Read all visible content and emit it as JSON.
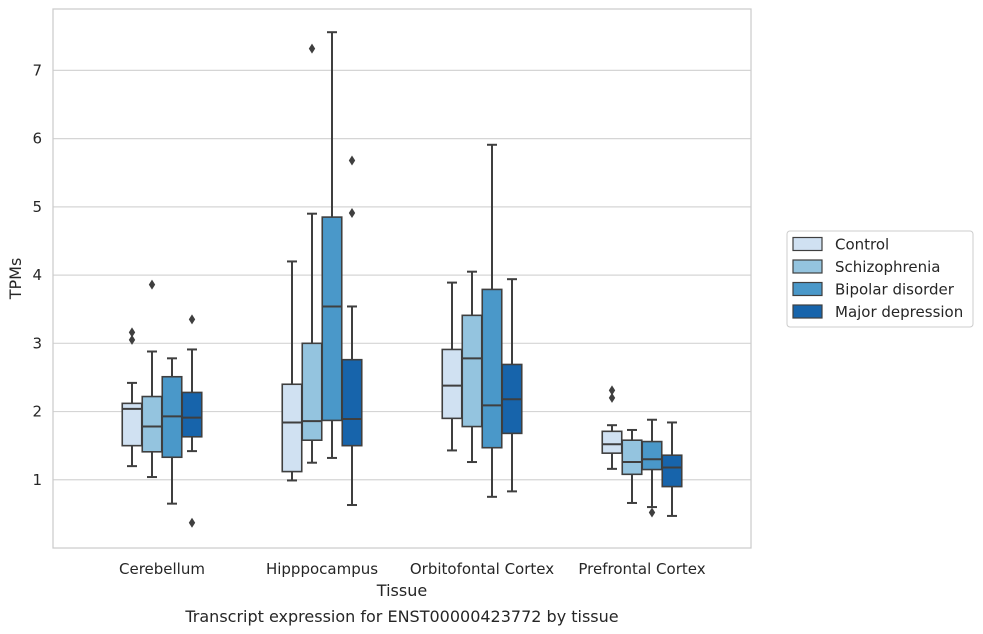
{
  "chart_data": {
    "type": "box",
    "xlabel": "Tissue",
    "ylabel": "TPMs",
    "caption": "Transcript expression for ENST00000423772 by tissue",
    "ylim": [
      0,
      7.9
    ],
    "yticks": [
      1,
      2,
      3,
      4,
      5,
      6,
      7
    ],
    "grid": "horizontal",
    "legend_position": "right",
    "categories": [
      "Cerebellum",
      "Hipppocampus",
      "Orbitofontal Cortex",
      "Prefrontal Cortex"
    ],
    "series": [
      {
        "name": "Control",
        "color": "#d0e1f2",
        "boxes": [
          {
            "whislo": 1.2,
            "q1": 1.5,
            "med": 2.04,
            "q3": 2.12,
            "whishi": 2.42,
            "fliers": [
              3.05,
              3.16
            ]
          },
          {
            "whislo": 0.99,
            "q1": 1.12,
            "med": 1.84,
            "q3": 2.4,
            "whishi": 4.2,
            "fliers": []
          },
          {
            "whislo": 1.43,
            "q1": 1.9,
            "med": 2.38,
            "q3": 2.91,
            "whishi": 3.89,
            "fliers": []
          },
          {
            "whislo": 1.16,
            "q1": 1.39,
            "med": 1.52,
            "q3": 1.71,
            "whishi": 1.8,
            "fliers": [
              2.2,
              2.31
            ]
          }
        ]
      },
      {
        "name": "Schizophrenia",
        "color": "#94c4df",
        "boxes": [
          {
            "whislo": 1.04,
            "q1": 1.41,
            "med": 1.78,
            "q3": 2.22,
            "whishi": 2.88,
            "fliers": [
              3.86
            ]
          },
          {
            "whislo": 1.25,
            "q1": 1.58,
            "med": 1.86,
            "q3": 3.0,
            "whishi": 4.9,
            "fliers": [
              7.32
            ]
          },
          {
            "whislo": 1.26,
            "q1": 1.78,
            "med": 2.78,
            "q3": 3.41,
            "whishi": 4.05,
            "fliers": []
          },
          {
            "whislo": 0.66,
            "q1": 1.08,
            "med": 1.26,
            "q3": 1.58,
            "whishi": 1.73,
            "fliers": []
          }
        ]
      },
      {
        "name": "Bipolar disorder",
        "color": "#4a98c9",
        "boxes": [
          {
            "whislo": 0.65,
            "q1": 1.33,
            "med": 1.93,
            "q3": 2.51,
            "whishi": 2.78,
            "fliers": []
          },
          {
            "whislo": 1.32,
            "q1": 1.87,
            "med": 3.54,
            "q3": 4.85,
            "whishi": 7.56,
            "fliers": []
          },
          {
            "whislo": 0.75,
            "q1": 1.47,
            "med": 2.09,
            "q3": 3.79,
            "whishi": 5.91,
            "fliers": []
          },
          {
            "whislo": 0.6,
            "q1": 1.15,
            "med": 1.3,
            "q3": 1.56,
            "whishi": 1.88,
            "fliers": [
              0.52
            ]
          }
        ]
      },
      {
        "name": "Major depression",
        "color": "#1764ab",
        "boxes": [
          {
            "whislo": 1.42,
            "q1": 1.63,
            "med": 1.91,
            "q3": 2.28,
            "whishi": 2.91,
            "fliers": [
              0.37,
              3.35
            ]
          },
          {
            "whislo": 0.63,
            "q1": 1.5,
            "med": 1.89,
            "q3": 2.76,
            "whishi": 3.54,
            "fliers": [
              4.91,
              5.68
            ]
          },
          {
            "whislo": 0.83,
            "q1": 1.68,
            "med": 2.18,
            "q3": 2.69,
            "whishi": 3.94,
            "fliers": []
          },
          {
            "whislo": 0.47,
            "q1": 0.9,
            "med": 1.18,
            "q3": 1.36,
            "whishi": 1.84,
            "fliers": []
          }
        ]
      }
    ]
  }
}
